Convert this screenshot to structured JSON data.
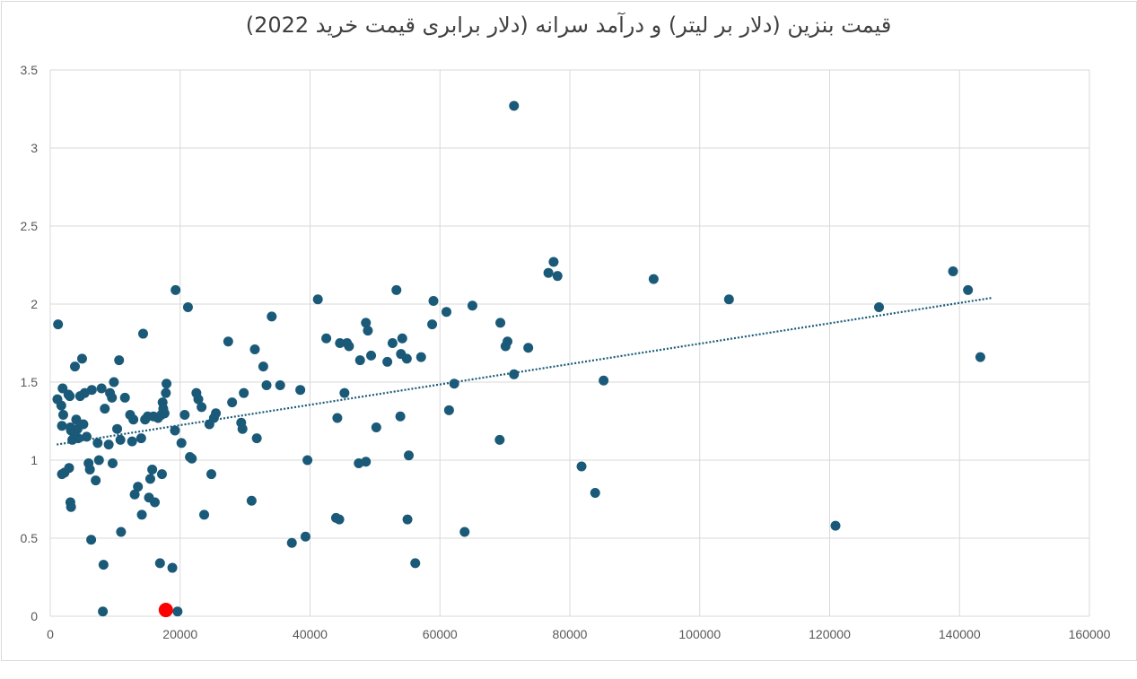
{
  "chart_data": {
    "type": "scatter",
    "title": "قیمت بنزین (دلار بر لیتر) و درآمد سرانه (دلار برابری قیمت خرید 2022)",
    "xlabel": "",
    "ylabel": "",
    "xlim": [
      0,
      160000
    ],
    "ylim": [
      0,
      3.5
    ],
    "x_ticks": [
      "0",
      "20000",
      "40000",
      "60000",
      "80000",
      "100000",
      "120000",
      "140000",
      "160000"
    ],
    "y_ticks": [
      "0",
      "0.5",
      "1",
      "1.5",
      "2",
      "2.5",
      "3",
      "3.5"
    ],
    "grid": true,
    "legend": "none",
    "colors": {
      "points": "#1a5a78",
      "highlight": "#ff0000",
      "trendline": "#1a5a78",
      "grid": "#d9d9d9"
    },
    "trendline": {
      "type": "linear",
      "style": "dotted",
      "x": [
        1000,
        145000
      ],
      "y": [
        1.1,
        2.04
      ]
    },
    "highlight": {
      "x": 17800,
      "y": 0.04
    },
    "points": [
      [
        1200,
        1.87
      ],
      [
        1100,
        1.39
      ],
      [
        1700,
        1.35
      ],
      [
        1900,
        1.46
      ],
      [
        2000,
        1.29
      ],
      [
        1800,
        1.22
      ],
      [
        2200,
        0.92
      ],
      [
        1800,
        0.91
      ],
      [
        2800,
        1.42
      ],
      [
        3000,
        1.41
      ],
      [
        3200,
        1.19
      ],
      [
        3400,
        1.13
      ],
      [
        3600,
        1.18
      ],
      [
        3100,
        1.21
      ],
      [
        2900,
        0.95
      ],
      [
        3100,
        0.73
      ],
      [
        3200,
        0.7
      ],
      [
        3800,
        1.6
      ],
      [
        4000,
        1.26
      ],
      [
        4200,
        1.2
      ],
      [
        4300,
        1.14
      ],
      [
        4600,
        1.41
      ],
      [
        4900,
        1.65
      ],
      [
        5100,
        1.23
      ],
      [
        5300,
        1.43
      ],
      [
        5600,
        1.15
      ],
      [
        5900,
        0.98
      ],
      [
        6100,
        0.94
      ],
      [
        6300,
        0.49
      ],
      [
        6400,
        1.45
      ],
      [
        7000,
        0.87
      ],
      [
        7300,
        1.11
      ],
      [
        7500,
        1.0
      ],
      [
        7900,
        1.46
      ],
      [
        8200,
        0.33
      ],
      [
        8100,
        0.03
      ],
      [
        8400,
        1.33
      ],
      [
        9000,
        1.1
      ],
      [
        9200,
        1.43
      ],
      [
        9500,
        1.4
      ],
      [
        9600,
        0.98
      ],
      [
        9800,
        1.5
      ],
      [
        10300,
        1.2
      ],
      [
        10600,
        1.64
      ],
      [
        10800,
        1.13
      ],
      [
        10900,
        0.54
      ],
      [
        11500,
        1.4
      ],
      [
        12300,
        1.29
      ],
      [
        12600,
        1.12
      ],
      [
        12800,
        1.26
      ],
      [
        13000,
        0.78
      ],
      [
        13500,
        0.83
      ],
      [
        14000,
        1.14
      ],
      [
        14100,
        0.65
      ],
      [
        14300,
        1.81
      ],
      [
        14600,
        1.26
      ],
      [
        15000,
        1.28
      ],
      [
        15200,
        0.76
      ],
      [
        15400,
        0.88
      ],
      [
        15700,
        0.94
      ],
      [
        15900,
        1.28
      ],
      [
        16100,
        0.73
      ],
      [
        16600,
        1.27
      ],
      [
        16900,
        0.34
      ],
      [
        17100,
        1.29
      ],
      [
        17200,
        0.91
      ],
      [
        17300,
        1.37
      ],
      [
        17400,
        1.33
      ],
      [
        17600,
        1.3
      ],
      [
        17800,
        1.43
      ],
      [
        17900,
        1.49
      ],
      [
        18800,
        0.31
      ],
      [
        19200,
        1.19
      ],
      [
        19300,
        2.09
      ],
      [
        19600,
        0.03
      ],
      [
        20200,
        1.11
      ],
      [
        20700,
        1.29
      ],
      [
        21200,
        1.98
      ],
      [
        21500,
        1.02
      ],
      [
        21800,
        1.01
      ],
      [
        22500,
        1.43
      ],
      [
        22800,
        1.39
      ],
      [
        23300,
        1.34
      ],
      [
        23700,
        0.65
      ],
      [
        24500,
        1.23
      ],
      [
        24800,
        0.91
      ],
      [
        25200,
        1.27
      ],
      [
        25500,
        1.3
      ],
      [
        27400,
        1.76
      ],
      [
        28000,
        1.37
      ],
      [
        29400,
        1.24
      ],
      [
        29600,
        1.2
      ],
      [
        29800,
        1.43
      ],
      [
        31000,
        0.74
      ],
      [
        31500,
        1.71
      ],
      [
        31800,
        1.14
      ],
      [
        32800,
        1.6
      ],
      [
        33300,
        1.48
      ],
      [
        34100,
        1.92
      ],
      [
        35400,
        1.48
      ],
      [
        37200,
        0.47
      ],
      [
        38500,
        1.45
      ],
      [
        39300,
        0.51
      ],
      [
        39600,
        1.0
      ],
      [
        41200,
        2.03
      ],
      [
        42500,
        1.78
      ],
      [
        44000,
        0.63
      ],
      [
        44200,
        1.27
      ],
      [
        44500,
        0.62
      ],
      [
        44600,
        1.75
      ],
      [
        45300,
        1.43
      ],
      [
        45700,
        1.75
      ],
      [
        46000,
        1.73
      ],
      [
        47500,
        0.98
      ],
      [
        47700,
        1.64
      ],
      [
        48600,
        1.88
      ],
      [
        48600,
        0.99
      ],
      [
        48900,
        1.83
      ],
      [
        49400,
        1.67
      ],
      [
        50200,
        1.21
      ],
      [
        51900,
        1.63
      ],
      [
        52700,
        1.75
      ],
      [
        53300,
        2.09
      ],
      [
        53900,
        1.28
      ],
      [
        54000,
        1.68
      ],
      [
        54200,
        1.78
      ],
      [
        54900,
        1.65
      ],
      [
        55000,
        0.62
      ],
      [
        55200,
        1.03
      ],
      [
        56200,
        0.34
      ],
      [
        57100,
        1.66
      ],
      [
        58800,
        1.87
      ],
      [
        59000,
        2.02
      ],
      [
        61000,
        1.95
      ],
      [
        61400,
        1.32
      ],
      [
        62200,
        1.49
      ],
      [
        63800,
        0.54
      ],
      [
        65000,
        1.99
      ],
      [
        69200,
        1.13
      ],
      [
        69300,
        1.88
      ],
      [
        70100,
        1.73
      ],
      [
        70400,
        1.76
      ],
      [
        71400,
        3.27
      ],
      [
        71400,
        1.55
      ],
      [
        73600,
        1.72
      ],
      [
        76700,
        2.2
      ],
      [
        77500,
        2.27
      ],
      [
        78100,
        2.18
      ],
      [
        81800,
        0.96
      ],
      [
        83900,
        0.79
      ],
      [
        85200,
        1.51
      ],
      [
        92900,
        2.16
      ],
      [
        104500,
        2.03
      ],
      [
        120900,
        0.58
      ],
      [
        127600,
        1.98
      ],
      [
        139000,
        2.21
      ],
      [
        141300,
        2.09
      ],
      [
        143200,
        1.66
      ]
    ]
  }
}
